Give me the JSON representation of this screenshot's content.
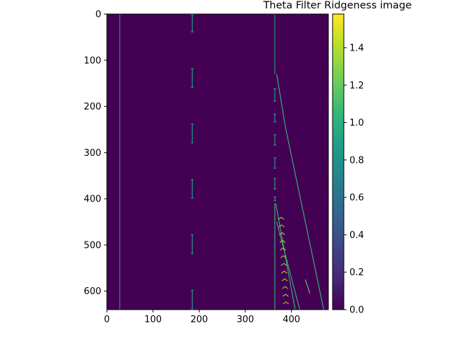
{
  "chart_data": {
    "type": "heatmap",
    "title": "Theta Filter Ridgeness image",
    "xlabel": "",
    "ylabel": "",
    "xlim": [
      0,
      480
    ],
    "ylim": [
      640,
      0
    ],
    "background_value": 0.0,
    "x_ticks": [
      0,
      100,
      200,
      300,
      400
    ],
    "y_ticks": [
      0,
      100,
      200,
      300,
      400,
      500,
      600
    ],
    "colorbar": {
      "range": [
        0.0,
        1.58
      ],
      "ticks": [
        0.0,
        0.2,
        0.4,
        0.6,
        0.8,
        1.0,
        1.2,
        1.4
      ],
      "tick_labels": [
        "0.0",
        "0.2",
        "0.4",
        "0.6",
        "0.8",
        "1.0",
        "1.2",
        "1.4"
      ],
      "colormap": "viridis",
      "colors": [
        "#440154",
        "#482878",
        "#3e4989",
        "#31688e",
        "#26828e",
        "#1f9e89",
        "#35b779",
        "#6ece58",
        "#b5de2b",
        "#fde725"
      ]
    },
    "features": [
      {
        "kind": "ridge",
        "x1": 28,
        "y1": 0,
        "x2": 28,
        "y2": 640,
        "value": 0.8
      },
      {
        "kind": "ridge",
        "x1": 364,
        "y1": 0,
        "x2": 364,
        "y2": 130,
        "value": 0.8
      },
      {
        "kind": "ridge",
        "x1": 364,
        "y1": 410,
        "x2": 364,
        "y2": 640,
        "value": 1.1
      },
      {
        "kind": "ridge",
        "x1": 368,
        "y1": 130,
        "x2": 387,
        "y2": 245,
        "value": 1.0
      },
      {
        "kind": "ridge",
        "x1": 387,
        "y1": 245,
        "x2": 470,
        "y2": 640,
        "value": 1.0
      },
      {
        "kind": "ridge",
        "x1": 366,
        "y1": 410,
        "x2": 408,
        "y2": 640,
        "value": 1.1
      },
      {
        "kind": "ridge",
        "x1": 368,
        "y1": 450,
        "x2": 418,
        "y2": 640,
        "value": 1.0
      },
      {
        "kind": "ridge",
        "x1": 430,
        "y1": 575,
        "x2": 440,
        "y2": 605,
        "value": 1.3
      },
      {
        "kind": "segment",
        "x": 185,
        "y1": 0,
        "y2": 40,
        "value": 0.8
      },
      {
        "kind": "segment",
        "x": 185,
        "y1": 117,
        "y2": 160,
        "value": 0.8
      },
      {
        "kind": "segment",
        "x": 185,
        "y1": 237,
        "y2": 280,
        "value": 0.8
      },
      {
        "kind": "segment",
        "x": 185,
        "y1": 357,
        "y2": 400,
        "value": 0.8
      },
      {
        "kind": "segment",
        "x": 185,
        "y1": 477,
        "y2": 520,
        "value": 0.8
      },
      {
        "kind": "segment",
        "x": 185,
        "y1": 597,
        "y2": 640,
        "value": 0.8
      },
      {
        "kind": "segment",
        "x": 364,
        "y1": 160,
        "y2": 190,
        "value": 0.8
      },
      {
        "kind": "segment",
        "x": 364,
        "y1": 215,
        "y2": 235,
        "value": 0.8
      },
      {
        "kind": "segment",
        "x": 364,
        "y1": 260,
        "y2": 285,
        "value": 0.8
      },
      {
        "kind": "segment",
        "x": 364,
        "y1": 310,
        "y2": 335,
        "value": 0.8
      },
      {
        "kind": "segment",
        "x": 364,
        "y1": 355,
        "y2": 380,
        "value": 0.8
      },
      {
        "kind": "segment",
        "x": 364,
        "y1": 395,
        "y2": 405,
        "value": 0.8
      },
      {
        "kind": "chevrons",
        "x": 378,
        "y1": 440,
        "y2": 640,
        "count": 12,
        "value": 1.4
      }
    ]
  }
}
